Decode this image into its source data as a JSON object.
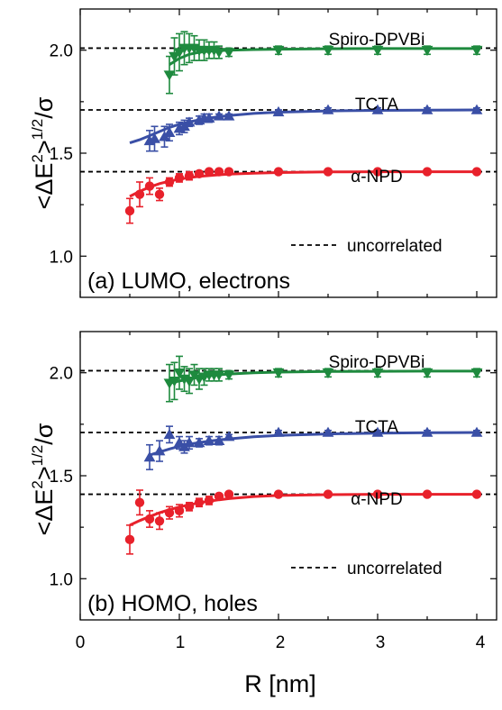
{
  "colors": {
    "Spiro-DPVBi": "#1e8a3e",
    "TCTA": "#3a4fa6",
    "α-NPD": "#e8212b",
    "uncorrelated": "#000000"
  },
  "figure": {
    "xlabel": "R [nm]",
    "ylabel": "<ΔE²>^1/2/σ",
    "ylabel_main": "<ΔE",
    "ylabel_sup2": "2",
    "ylabel_close": ">",
    "ylabel_sup12": "1/2",
    "ylabel_tail": "/σ",
    "xticks": [
      "0",
      "1",
      "2",
      "3",
      "4"
    ],
    "yticks": [
      "1.0",
      "1.5",
      "2.0"
    ]
  },
  "chart_data": [
    {
      "type": "scatter",
      "panel_label": "(a) LUMO, electrons",
      "xlim": [
        0,
        4.2
      ],
      "ylim": [
        0.8,
        2.2
      ],
      "legend": {
        "label": "uncorrelated",
        "placement": "lower-right"
      },
      "reference_lines": [
        {
          "name": "Spiro-DPVBi",
          "y": 2.01
        },
        {
          "name": "TCTA",
          "y": 1.71
        },
        {
          "name": "α-NPD",
          "y": 1.41
        }
      ],
      "series": [
        {
          "name": "Spiro-DPVBi",
          "marker": "triangle-down",
          "x": [
            0.9,
            0.95,
            1.0,
            1.05,
            1.1,
            1.15,
            1.2,
            1.25,
            1.3,
            1.35,
            1.4,
            1.5,
            2.0,
            2.5,
            3.0,
            3.5,
            4.0
          ],
          "y": [
            1.88,
            1.97,
            1.99,
            2.01,
            2.01,
            2.01,
            2.0,
            2.0,
            2.0,
            2.0,
            1.99,
            1.99,
            2.0,
            2.0,
            2.0,
            2.0,
            2.0
          ],
          "err": [
            0.09,
            0.09,
            0.09,
            0.08,
            0.07,
            0.06,
            0.05,
            0.05,
            0.04,
            0.04,
            0.03,
            0.02,
            0.02,
            0.02,
            0.02,
            0.02,
            0.02
          ],
          "fit_x": [
            0.9,
            1.0,
            1.1,
            1.2,
            1.3,
            1.4,
            1.5,
            1.75,
            2.0,
            2.5,
            3.0,
            3.5,
            4.0
          ],
          "fit_y": [
            1.93,
            1.96,
            1.98,
            1.99,
            1.995,
            1.998,
            2.0,
            2.003,
            2.005,
            2.007,
            2.008,
            2.008,
            2.008
          ]
        },
        {
          "name": "TCTA",
          "marker": "triangle-up",
          "x": [
            0.7,
            0.75,
            0.85,
            0.9,
            1.0,
            1.05,
            1.1,
            1.2,
            1.25,
            1.3,
            1.4,
            1.5,
            2.0,
            2.5,
            3.0,
            3.5,
            4.0
          ],
          "y": [
            1.56,
            1.57,
            1.58,
            1.6,
            1.62,
            1.63,
            1.65,
            1.66,
            1.67,
            1.67,
            1.68,
            1.68,
            1.7,
            1.71,
            1.71,
            1.71,
            1.71
          ],
          "err": [
            0.05,
            0.06,
            0.05,
            0.04,
            0.03,
            0.03,
            0.02,
            0.02,
            0.02,
            0.02,
            0.01,
            0.01,
            0.01,
            0.01,
            0.01,
            0.01,
            0.01
          ],
          "fit_x": [
            0.5,
            0.6,
            0.7,
            0.8,
            0.9,
            1.0,
            1.1,
            1.2,
            1.3,
            1.4,
            1.5,
            1.75,
            2.0,
            2.5,
            3.0,
            3.5,
            4.0
          ],
          "fit_y": [
            1.55,
            1.565,
            1.585,
            1.605,
            1.625,
            1.64,
            1.652,
            1.662,
            1.67,
            1.677,
            1.683,
            1.693,
            1.699,
            1.705,
            1.708,
            1.709,
            1.71
          ]
        },
        {
          "name": "α-NPD",
          "marker": "circle",
          "x": [
            0.5,
            0.6,
            0.7,
            0.8,
            0.9,
            1.0,
            1.1,
            1.2,
            1.3,
            1.4,
            1.5,
            2.0,
            2.5,
            3.0,
            3.5,
            4.0
          ],
          "y": [
            1.22,
            1.3,
            1.34,
            1.3,
            1.36,
            1.38,
            1.39,
            1.4,
            1.41,
            1.41,
            1.41,
            1.41,
            1.41,
            1.41,
            1.41,
            1.41
          ],
          "err": [
            0.06,
            0.06,
            0.04,
            0.03,
            0.02,
            0.02,
            0.02,
            0.01,
            0.01,
            0.01,
            0.01,
            0.01,
            0.01,
            0.01,
            0.01,
            0.01
          ],
          "fit_x": [
            0.5,
            0.6,
            0.7,
            0.8,
            0.9,
            1.0,
            1.1,
            1.2,
            1.3,
            1.4,
            1.5,
            1.75,
            2.0,
            2.5,
            3.0,
            3.5,
            4.0
          ],
          "fit_y": [
            1.29,
            1.315,
            1.335,
            1.352,
            1.364,
            1.374,
            1.381,
            1.387,
            1.391,
            1.395,
            1.398,
            1.403,
            1.406,
            1.409,
            1.41,
            1.41,
            1.41
          ]
        }
      ]
    },
    {
      "type": "scatter",
      "panel_label": "(b) HOMO, holes",
      "xlim": [
        0,
        4.2
      ],
      "ylim": [
        0.8,
        2.2
      ],
      "legend": {
        "label": "uncorrelated",
        "placement": "lower-right"
      },
      "reference_lines": [
        {
          "name": "Spiro-DPVBi",
          "y": 2.01
        },
        {
          "name": "TCTA",
          "y": 1.71
        },
        {
          "name": "α-NPD",
          "y": 1.41
        }
      ],
      "series": [
        {
          "name": "Spiro-DPVBi",
          "marker": "triangle-down",
          "x": [
            0.9,
            0.95,
            1.0,
            1.05,
            1.1,
            1.15,
            1.2,
            1.25,
            1.3,
            1.35,
            1.4,
            1.5,
            2.0,
            2.5,
            3.0,
            3.5,
            4.0
          ],
          "y": [
            1.95,
            1.96,
            2.0,
            1.97,
            1.96,
            1.99,
            1.97,
            1.98,
            1.99,
            1.99,
            1.99,
            1.99,
            2.0,
            2.0,
            2.0,
            2.0,
            2.0
          ],
          "err": [
            0.09,
            0.09,
            0.08,
            0.06,
            0.06,
            0.05,
            0.05,
            0.04,
            0.03,
            0.03,
            0.03,
            0.02,
            0.02,
            0.02,
            0.02,
            0.02,
            0.02
          ],
          "fit_x": [
            0.9,
            1.0,
            1.1,
            1.2,
            1.3,
            1.4,
            1.5,
            1.75,
            2.0,
            2.5,
            3.0,
            3.5,
            4.0
          ],
          "fit_y": [
            1.95,
            1.96,
            1.97,
            1.978,
            1.985,
            1.99,
            1.994,
            2.0,
            2.003,
            2.006,
            2.007,
            2.008,
            2.008
          ]
        },
        {
          "name": "TCTA",
          "marker": "triangle-up",
          "x": [
            0.7,
            0.8,
            0.9,
            1.0,
            1.05,
            1.1,
            1.2,
            1.3,
            1.4,
            1.5,
            2.0,
            2.5,
            3.0,
            3.5,
            4.0
          ],
          "y": [
            1.59,
            1.62,
            1.7,
            1.66,
            1.64,
            1.66,
            1.66,
            1.67,
            1.67,
            1.69,
            1.71,
            1.71,
            1.71,
            1.71,
            1.71
          ],
          "err": [
            0.06,
            0.05,
            0.04,
            0.03,
            0.03,
            0.03,
            0.02,
            0.02,
            0.02,
            0.01,
            0.01,
            0.01,
            0.01,
            0.01,
            0.01
          ],
          "fit_x": [
            0.7,
            0.8,
            0.9,
            1.0,
            1.1,
            1.2,
            1.3,
            1.4,
            1.5,
            1.75,
            2.0,
            2.5,
            3.0,
            3.5,
            4.0
          ],
          "fit_y": [
            1.6,
            1.615,
            1.63,
            1.643,
            1.653,
            1.661,
            1.668,
            1.674,
            1.679,
            1.689,
            1.696,
            1.703,
            1.707,
            1.709,
            1.71
          ]
        },
        {
          "name": "α-NPD",
          "marker": "circle",
          "x": [
            0.5,
            0.6,
            0.7,
            0.8,
            0.9,
            1.0,
            1.1,
            1.2,
            1.3,
            1.4,
            1.5,
            2.0,
            2.5,
            3.0,
            3.5,
            4.0
          ],
          "y": [
            1.19,
            1.37,
            1.29,
            1.28,
            1.32,
            1.33,
            1.35,
            1.37,
            1.38,
            1.4,
            1.41,
            1.41,
            1.41,
            1.41,
            1.41,
            1.41
          ],
          "err": [
            0.07,
            0.06,
            0.04,
            0.04,
            0.03,
            0.03,
            0.02,
            0.02,
            0.02,
            0.01,
            0.01,
            0.01,
            0.01,
            0.01,
            0.01,
            0.01
          ],
          "fit_x": [
            0.5,
            0.6,
            0.7,
            0.8,
            0.9,
            1.0,
            1.1,
            1.2,
            1.3,
            1.4,
            1.5,
            1.75,
            2.0,
            2.5,
            3.0,
            3.5,
            4.0
          ],
          "fit_y": [
            1.26,
            1.282,
            1.302,
            1.32,
            1.335,
            1.348,
            1.359,
            1.368,
            1.376,
            1.383,
            1.389,
            1.399,
            1.404,
            1.408,
            1.41,
            1.41,
            1.41
          ]
        }
      ]
    }
  ]
}
